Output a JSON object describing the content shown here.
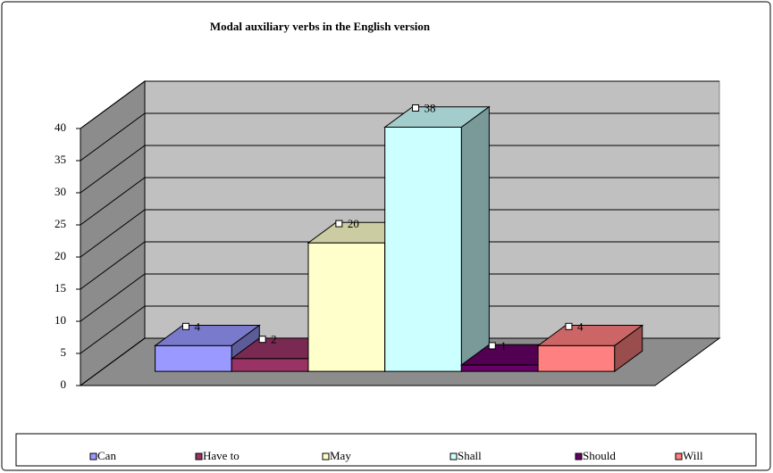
{
  "chart_data": {
    "type": "bar3d",
    "title": "Modal auxiliary verbs in the English version",
    "categories": [
      "Can",
      "Have to",
      "May",
      "Shall",
      "Should",
      "Will"
    ],
    "values": [
      4,
      2,
      20,
      38,
      1,
      4
    ],
    "colors": [
      "#9999ff",
      "#993366",
      "#ffffcc",
      "#ccffff",
      "#660066",
      "#ff8080"
    ],
    "ylim": [
      0,
      40
    ],
    "yticks": [
      0,
      5,
      10,
      15,
      20,
      25,
      30,
      35,
      40
    ],
    "grid": true,
    "legend": "bottom"
  }
}
